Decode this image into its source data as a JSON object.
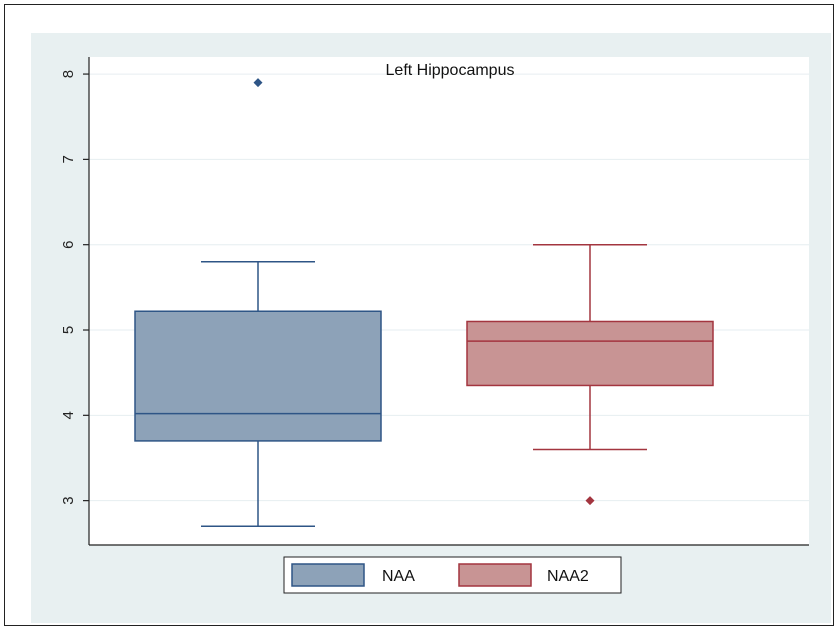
{
  "chart_data": {
    "type": "box",
    "title": "Left Hippocampus",
    "xlabel": "",
    "ylabel": "",
    "ylim": [
      2.48,
      8.2
    ],
    "yticks": [
      3,
      4,
      5,
      6,
      7,
      8
    ],
    "grid": true,
    "legend_position": "bottom",
    "series": [
      {
        "name": "NAA",
        "color": "#8da2b8",
        "edge_color": "#2e5586",
        "min": 2.7,
        "q1": 3.7,
        "median": 4.02,
        "q3": 5.22,
        "max": 5.8,
        "outliers": [
          7.9
        ]
      },
      {
        "name": "NAA2",
        "color": "#c89494",
        "edge_color": "#a3353f",
        "min": 3.6,
        "q1": 4.35,
        "median": 4.87,
        "q3": 5.1,
        "max": 6.0,
        "outliers": [
          3.0
        ]
      }
    ],
    "colors": {
      "plot_background": "#ffffff",
      "outer_background": "#e8f0f1",
      "gridline": "#e6eef0"
    }
  }
}
